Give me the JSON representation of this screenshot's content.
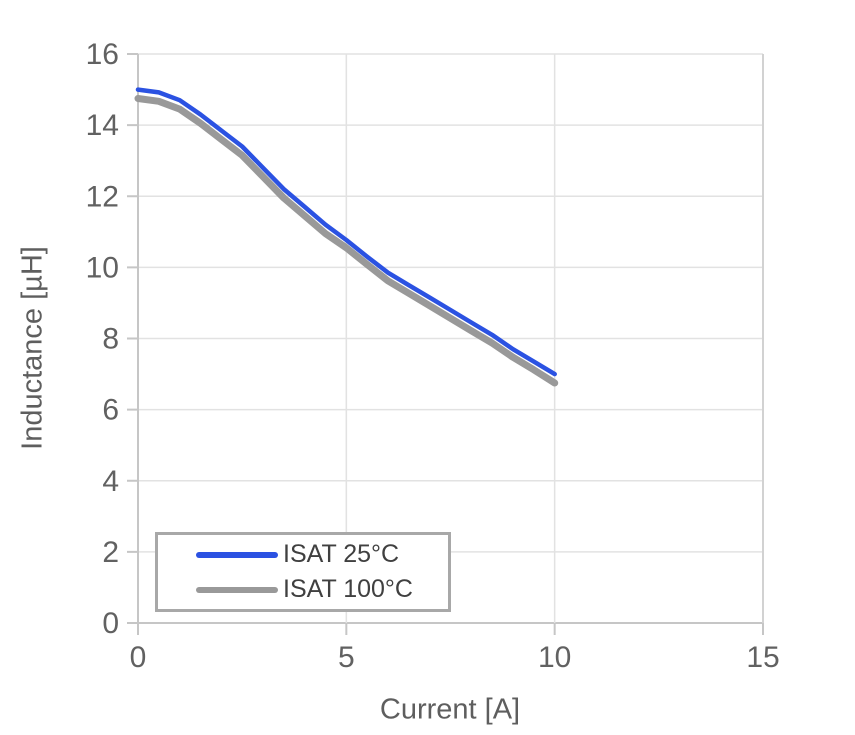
{
  "chart_data": {
    "type": "line",
    "title": "",
    "xlabel": "Current [A]",
    "ylabel": "Inductance [µH]",
    "xlim": [
      0,
      15
    ],
    "ylim": [
      0,
      16
    ],
    "xticks": [
      0,
      5,
      10,
      15
    ],
    "yticks": [
      0,
      2,
      4,
      6,
      8,
      10,
      12,
      14,
      16
    ],
    "grid": true,
    "legend_position": "bottom-left",
    "x": [
      0,
      0.5,
      1,
      1.5,
      2,
      2.5,
      3,
      3.5,
      4,
      4.5,
      5,
      5.5,
      6,
      6.5,
      7,
      7.5,
      8,
      8.5,
      9,
      9.5,
      10
    ],
    "series": [
      {
        "name": "ISAT 25°C",
        "color": "#2b52e2",
        "line_width": 4.5,
        "values": [
          15.0,
          14.92,
          14.7,
          14.3,
          13.85,
          13.4,
          12.8,
          12.2,
          11.7,
          11.2,
          10.77,
          10.3,
          9.85,
          9.5,
          9.15,
          8.8,
          8.45,
          8.1,
          7.7,
          7.35,
          7.0
        ]
      },
      {
        "name": "ISAT 100°C",
        "color": "#999999",
        "line_width": 7,
        "values": [
          14.75,
          14.67,
          14.45,
          14.05,
          13.6,
          13.15,
          12.55,
          11.95,
          11.45,
          10.95,
          10.55,
          10.08,
          9.62,
          9.27,
          8.92,
          8.57,
          8.22,
          7.87,
          7.47,
          7.12,
          6.75
        ]
      }
    ],
    "colors": {
      "grid_line": "#e2e2e2",
      "axis_line": "#c6c6c6",
      "plot_border_right": "#d2d2d2",
      "tick_label": "#616161",
      "axis_title": "#5e5e5e",
      "legend_border": "#a8a8a8",
      "legend_text": "#404040",
      "background": "#ffffff"
    }
  }
}
